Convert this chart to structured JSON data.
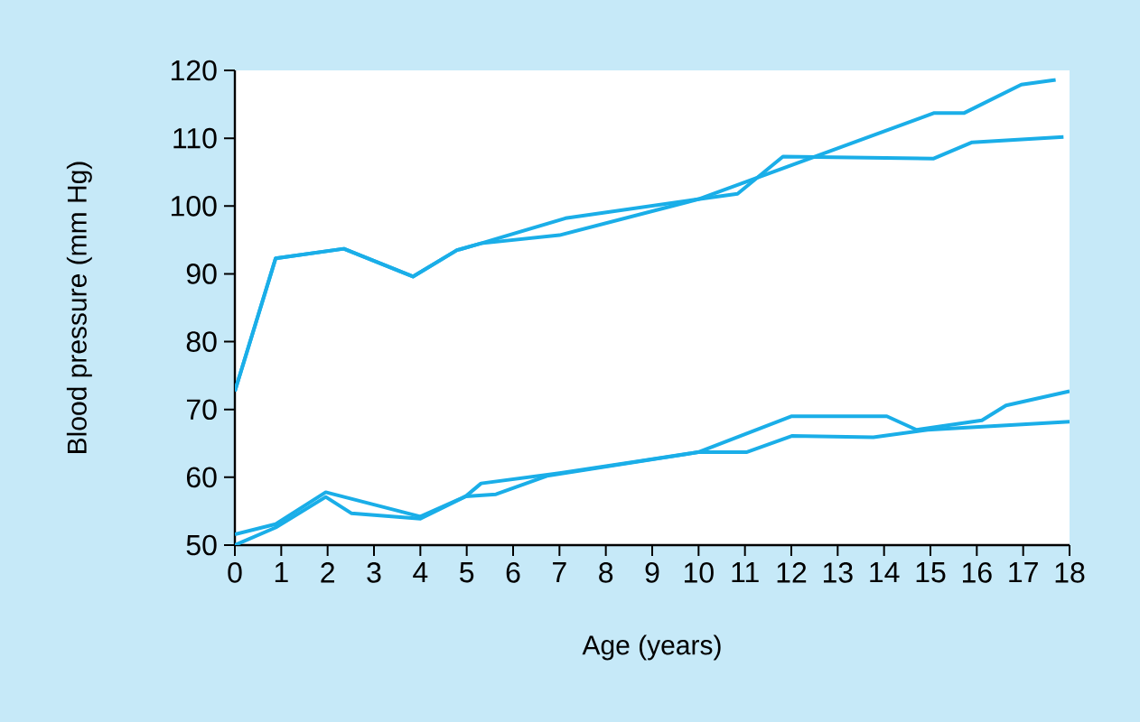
{
  "chart_data": {
    "type": "line",
    "xlabel": "Age (years)",
    "ylabel": "Blood pressure (mm Hg)",
    "xlim": [
      0,
      18
    ],
    "ylim": [
      50,
      120
    ],
    "xticks": [
      0,
      1,
      2,
      3,
      4,
      5,
      6,
      7,
      8,
      9,
      10,
      11,
      12,
      13,
      14,
      15,
      16,
      17,
      18
    ],
    "yticks": [
      50,
      60,
      70,
      80,
      90,
      100,
      110,
      120
    ],
    "grid": false,
    "marker": "none",
    "line_style": "solid",
    "series": [
      {
        "color": "#1aaee8",
        "x": [
          0,
          0.88,
          2.35,
          3.84,
          4.79,
          5.31,
          7.0,
          9.99,
          10.84,
          11.82,
          15.07,
          15.9,
          17.87
        ],
        "values": [
          72.7,
          92.3,
          93.7,
          89.6,
          93.5,
          94.5,
          95.7,
          101.0,
          101.8,
          107.3,
          107.0,
          109.4,
          110.2
        ]
      },
      {
        "color": "#1aaee8",
        "x": [
          0,
          0.88,
          2.35,
          3.84,
          4.79,
          5.31,
          7.13,
          9.99,
          15.07,
          15.72,
          16.96,
          17.7
        ],
        "values": [
          72.7,
          92.3,
          93.7,
          89.6,
          93.5,
          94.5,
          98.2,
          101.0,
          113.7,
          113.7,
          117.9,
          118.6
        ]
      },
      {
        "color": "#1aaee8",
        "x": [
          0,
          0.88,
          1.96,
          4.0,
          4.98,
          5.63,
          6.73,
          9.99,
          11.03,
          12.01,
          13.77,
          14.94,
          18
        ],
        "values": [
          51.6,
          53.1,
          57.8,
          54.2,
          57.2,
          57.5,
          60.2,
          63.7,
          63.7,
          66.1,
          65.9,
          67.0,
          68.2
        ]
      },
      {
        "color": "#1aaee8",
        "x": [
          0,
          0.88,
          1.96,
          2.51,
          4.0,
          4.98,
          5.31,
          7.0,
          9.99,
          12.01,
          14.06,
          14.7,
          16.11,
          16.63,
          18
        ],
        "values": [
          50,
          52.6,
          57.1,
          54.7,
          53.9,
          57.2,
          59.1,
          60.6,
          63.7,
          69.0,
          69.0,
          67.0,
          68.4,
          70.6,
          72.7
        ]
      }
    ]
  }
}
